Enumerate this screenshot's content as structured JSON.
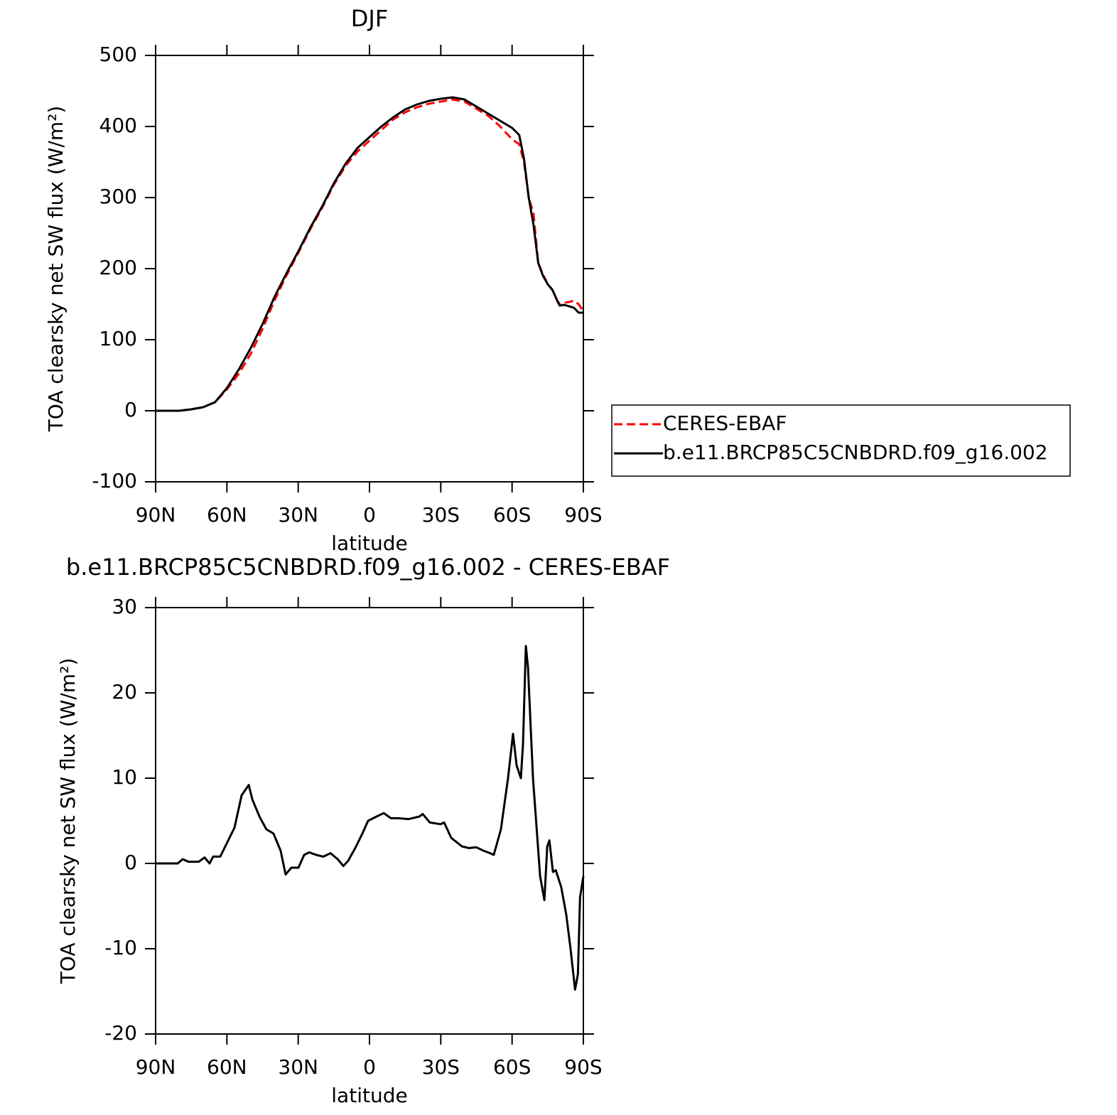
{
  "chart_data": [
    {
      "type": "line",
      "title": "DJF",
      "x_label": "latitude",
      "y_label": "TOA clearsky net SW flux (W/m²)",
      "xlim": [
        90,
        -90
      ],
      "xticks": [
        {
          "value": 90,
          "label": "90N"
        },
        {
          "value": 60,
          "label": "60N"
        },
        {
          "value": 30,
          "label": "30N"
        },
        0,
        {
          "value": -30,
          "label": "30S"
        },
        {
          "value": -60,
          "label": "60S"
        },
        {
          "value": -90,
          "label": "90S"
        }
      ],
      "ylim": [
        -100,
        500
      ],
      "yticks": [
        -100,
        0,
        100,
        200,
        300,
        400,
        500
      ],
      "legend": "right",
      "series": [
        {
          "name": "CERES-EBAF",
          "color": "#ff0000",
          "linestyle": "dashed",
          "x": [
            90,
            85,
            80,
            75,
            70,
            65,
            60,
            55,
            50,
            45,
            40,
            35,
            30,
            25,
            20,
            15,
            10,
            5,
            0,
            -5,
            -10,
            -15,
            -20,
            -25,
            -30,
            -35,
            -40,
            -45,
            -50,
            -55,
            -60,
            -63,
            -65,
            -67,
            -69,
            -71,
            -73,
            -75,
            -77,
            -79,
            -80,
            -82,
            -84,
            -86,
            -88,
            -90
          ],
          "values": [
            0,
            0,
            0,
            2,
            5,
            12,
            30,
            52,
            80,
            115,
            155,
            190,
            222,
            255,
            285,
            318,
            345,
            365,
            380,
            395,
            410,
            420,
            427,
            432,
            435,
            438,
            435,
            425,
            415,
            400,
            382,
            375,
            350,
            300,
            278,
            208,
            192,
            178,
            170,
            155,
            150,
            152,
            153,
            155,
            150,
            140
          ]
        },
        {
          "name": "b.e11.BRCP85C5CNBDRD.f09_g16.002",
          "color": "#000000",
          "linestyle": "solid",
          "x": [
            90,
            85,
            80,
            75,
            70,
            65,
            60,
            55,
            50,
            45,
            40,
            35,
            30,
            25,
            20,
            15,
            10,
            5,
            0,
            -5,
            -10,
            -15,
            -20,
            -25,
            -30,
            -35,
            -40,
            -45,
            -50,
            -55,
            -60,
            -63,
            -65,
            -67,
            -69,
            -71,
            -73,
            -75,
            -77,
            -79,
            -80,
            -82,
            -84,
            -86,
            -88,
            -90
          ],
          "values": [
            0,
            0,
            0,
            2,
            5,
            12,
            32,
            58,
            88,
            122,
            160,
            193,
            224,
            257,
            287,
            320,
            348,
            370,
            385,
            400,
            413,
            424,
            431,
            436,
            439,
            441,
            438,
            428,
            418,
            408,
            398,
            388,
            355,
            300,
            262,
            208,
            190,
            178,
            170,
            155,
            148,
            149,
            147,
            145,
            138,
            138
          ]
        }
      ]
    },
    {
      "type": "line",
      "title": "b.e11.BRCP85C5CNBDRD.f09_g16.002 - CERES-EBAF",
      "x_label": "latitude",
      "y_label": "TOA clearsky net SW flux (W/m²)",
      "xlim": [
        90,
        -90
      ],
      "xticks": [
        {
          "value": 90,
          "label": "90N"
        },
        {
          "value": 60,
          "label": "60N"
        },
        {
          "value": 30,
          "label": "30N"
        },
        0,
        {
          "value": -30,
          "label": "30S"
        },
        {
          "value": -60,
          "label": "60S"
        },
        {
          "value": -90,
          "label": "90S"
        }
      ],
      "ylim": [
        -20,
        30
      ],
      "yticks": [
        -20,
        -10,
        0,
        10,
        20,
        30
      ],
      "series": [
        {
          "color": "#000000",
          "linestyle": "solid",
          "x": [
            90,
            80.7,
            78.6,
            76.2,
            71.8,
            69.4,
            67.3,
            65.8,
            62.8,
            59.8,
            56.8,
            53.8,
            50.8,
            49.3,
            46.3,
            43.4,
            40.4,
            37.4,
            35.3,
            32.9,
            29.9,
            27.5,
            25.4,
            22.4,
            19.4,
            16.4,
            13.4,
            11,
            9,
            6,
            3,
            0.6,
            -3,
            -6,
            -9,
            -12,
            -16.5,
            -21,
            -22.4,
            -25.4,
            -29.9,
            -31.4,
            -34.4,
            -38.9,
            -41.9,
            -44.9,
            -47.9,
            -50.8,
            -52.3,
            -55.3,
            -58.3,
            -60.4,
            -61.9,
            -63.7,
            -64.6,
            -65.8,
            -66.7,
            -68.8,
            -71.8,
            -73.6,
            -74.8,
            -75.7,
            -77.2,
            -78.4,
            -80.7,
            -82.8,
            -84.6,
            -86.5,
            -87.7,
            -88.6,
            -90
          ],
          "values": [
            0,
            0,
            0.5,
            0.2,
            0.2,
            0.7,
            0,
            0.8,
            0.8,
            2.5,
            4.2,
            8,
            9.2,
            7.5,
            5.5,
            4,
            3.5,
            1.5,
            -1.3,
            -0.5,
            -0.5,
            1,
            1.3,
            1,
            0.8,
            1.2,
            0.5,
            -0.3,
            0.3,
            1.8,
            3.5,
            5,
            5.5,
            5.9,
            5.3,
            5.3,
            5.2,
            5.5,
            5.8,
            4.8,
            4.6,
            4.8,
            3,
            2,
            1.8,
            1.9,
            1.5,
            1.2,
            1,
            4,
            10,
            15.2,
            11.5,
            10,
            14,
            25.5,
            23,
            10,
            -1.5,
            -4.3,
            2,
            2.7,
            -1,
            -0.8,
            -2.8,
            -6,
            -10,
            -14.8,
            -13,
            -4,
            -1.5
          ]
        }
      ]
    }
  ]
}
